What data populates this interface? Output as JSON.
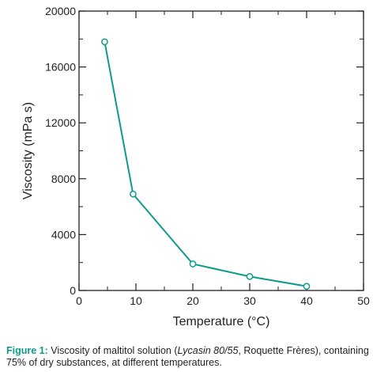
{
  "chart_data": {
    "type": "line",
    "xlabel": "Temperature (°C)",
    "ylabel": "Viscosity (mPa s)",
    "xlim": [
      0,
      50
    ],
    "ylim": [
      0,
      20000
    ],
    "x_ticks": [
      0,
      10,
      20,
      30,
      40,
      50
    ],
    "y_ticks": [
      0,
      4000,
      8000,
      12000,
      16000,
      20000
    ],
    "x_minor_ticks": [
      5,
      15,
      25,
      35,
      45
    ],
    "y_minor_ticks": [
      2000,
      6000,
      10000,
      14000,
      18000
    ],
    "grid": false,
    "series": [
      {
        "color": "#0e9a8c",
        "marker": "open-circle",
        "points": [
          {
            "x": 4.5,
            "y": 17800
          },
          {
            "x": 9.5,
            "y": 6900
          },
          {
            "x": 20,
            "y": 1900
          },
          {
            "x": 30,
            "y": 1000
          },
          {
            "x": 40,
            "y": 300
          }
        ]
      }
    ]
  },
  "caption": {
    "label": "Figure 1:",
    "text_before": " Viscosity of maltitol solution (",
    "italic": "Lycasin 80/55",
    "text_after": ", Roquette Frères), containing 75% of dry substances, at different temperatures."
  }
}
